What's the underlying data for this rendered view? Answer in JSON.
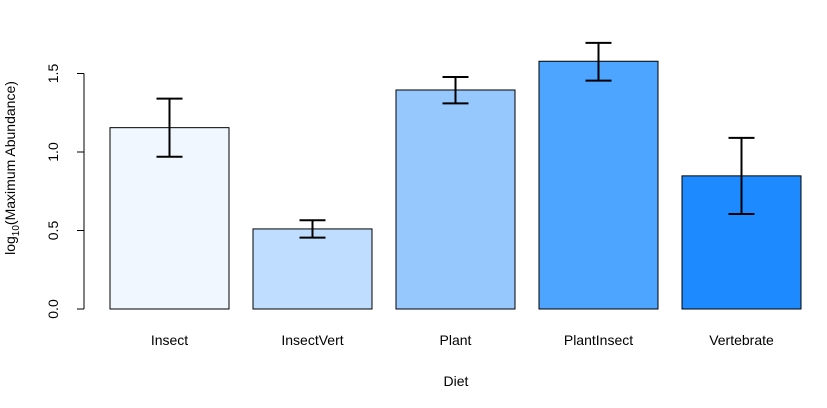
{
  "chart_data": {
    "type": "bar",
    "title": "",
    "xlabel": "Diet",
    "ylabel": {
      "prefix": "log",
      "subscript": "10",
      "suffix": "(Maximum Abundance)"
    },
    "categories": [
      "Insect",
      "InsectVert",
      "Plant",
      "PlantInsect",
      "Vertebrate"
    ],
    "values": [
      1.155,
      0.51,
      1.395,
      1.578,
      0.848
    ],
    "error_low": [
      0.97,
      0.455,
      1.31,
      1.455,
      0.605
    ],
    "error_high": [
      1.34,
      0.565,
      1.478,
      1.695,
      1.09
    ],
    "colors": [
      "#F0F7FF",
      "#BFDEFF",
      "#96C8FE",
      "#4EA5FF",
      "#1E8AFF"
    ],
    "ylim": [
      0,
      1.75
    ],
    "yticks": [
      0.0,
      0.5,
      1.0,
      1.5
    ],
    "ytick_labels": [
      "0.0",
      "0.5",
      "1.0",
      "1.5"
    ],
    "grid": false,
    "legend": "none"
  }
}
